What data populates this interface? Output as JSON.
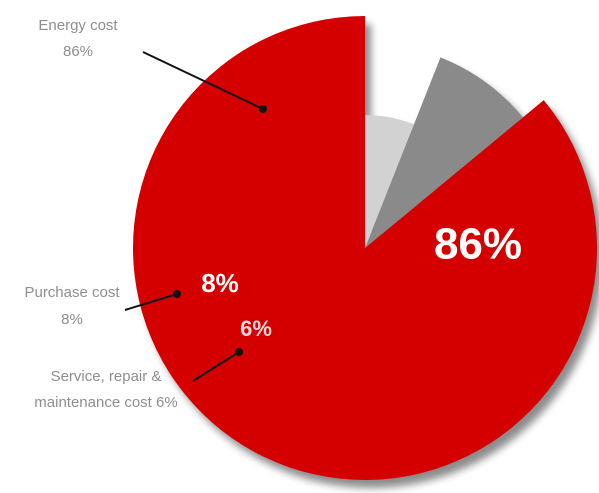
{
  "chart_data": {
    "type": "pie",
    "categories": [
      "Energy cost",
      "Purchase cost",
      "Service, repair & maintenance cost"
    ],
    "values": [
      86,
      8,
      6
    ],
    "unit": "%",
    "slice_labels": [
      "86%",
      "8%",
      "6%"
    ],
    "callouts": [
      [
        "Energy cost",
        "86%"
      ],
      [
        "Purchase cost",
        "8%"
      ],
      [
        "Service, repair &",
        "maintenance cost 6%"
      ]
    ],
    "colors": [
      "#d40000",
      "#8a8a8a",
      "#d2d2d2"
    ],
    "legend": "none"
  }
}
